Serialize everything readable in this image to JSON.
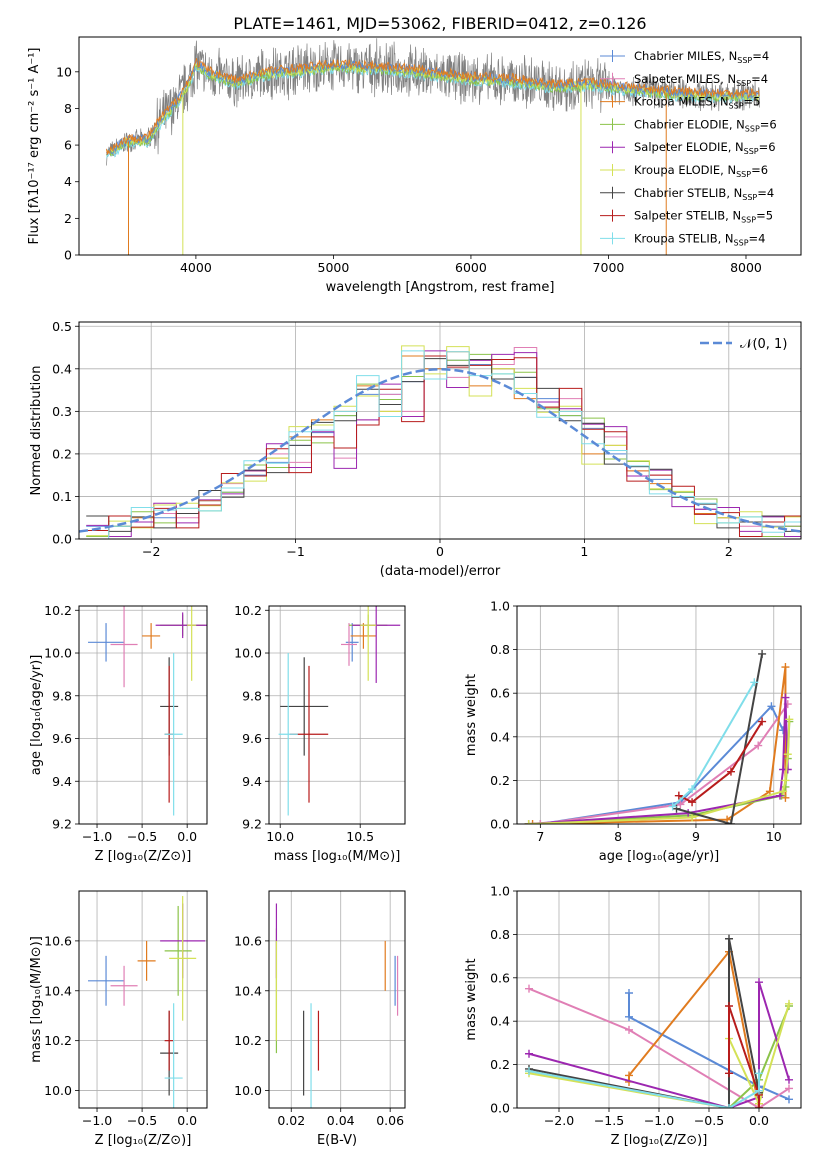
{
  "title": "PLATE=1461, MJD=53062, FIBERID=0412, z=0.126",
  "colors": {
    "chabrier_miles": "#5b8ad6",
    "salpeter_miles": "#e07fb5",
    "kroupa_miles": "#e07b1f",
    "chabrier_elodie": "#8bc34a",
    "salpeter_elodie": "#9c27b0",
    "kroupa_elodie": "#d4e157",
    "chabrier_stelib": "#444444",
    "salpeter_stelib": "#b71c1c",
    "kroupa_stelib": "#80deea",
    "data": "#808080",
    "gaussian": "#5b8ad6"
  },
  "legend_top": [
    {
      "pre": "Chabrier MILES, N",
      "sub": "SSP",
      "post": "=4",
      "color_key": "chabrier_miles"
    },
    {
      "pre": "Salpeter MILES, N",
      "sub": "SSP",
      "post": "=4",
      "color_key": "salpeter_miles"
    },
    {
      "pre": "Kroupa MILES, N",
      "sub": "SSP",
      "post": "=5",
      "color_key": "kroupa_miles"
    },
    {
      "pre": "Chabrier ELODIE, N",
      "sub": "SSP",
      "post": "=6",
      "color_key": "chabrier_elodie"
    },
    {
      "pre": "Salpeter ELODIE, N",
      "sub": "SSP",
      "post": "=6",
      "color_key": "salpeter_elodie"
    },
    {
      "pre": "Kroupa ELODIE, N",
      "sub": "SSP",
      "post": "=6",
      "color_key": "kroupa_elodie"
    },
    {
      "pre": "Chabrier STELIB, N",
      "sub": "SSP",
      "post": "=4",
      "color_key": "chabrier_stelib"
    },
    {
      "pre": "Salpeter STELIB, N",
      "sub": "SSP",
      "post": "=5",
      "color_key": "salpeter_stelib"
    },
    {
      "pre": "Kroupa STELIB, N",
      "sub": "SSP",
      "post": "=4",
      "color_key": "kroupa_stelib"
    }
  ],
  "chart_data": [
    {
      "id": "spectrum",
      "type": "line",
      "xlabel": "wavelength [Angstrom, rest frame]",
      "ylabel": "Flux [fλ10⁻¹⁷ erg cm⁻² s⁻¹ A⁻¹]",
      "xlim": [
        3150,
        8400
      ],
      "ylim": [
        0,
        11.9
      ],
      "xticks": [
        4000,
        5000,
        6000,
        7000,
        8000
      ],
      "yticks": [
        0,
        2,
        4,
        6,
        8,
        10
      ],
      "grid": false,
      "legend": "upper right",
      "continuum": {
        "x": [
          3350,
          3500,
          3650,
          3750,
          3850,
          3950,
          4000,
          4100,
          4300,
          4500,
          4800,
          5000,
          5300,
          5600,
          6000,
          6300,
          6600,
          6900,
          7200,
          7500,
          7800,
          8100
        ],
        "y": [
          5.5,
          6.2,
          6.3,
          7.4,
          8.2,
          9.4,
          10.4,
          9.9,
          9.4,
          9.9,
          10.1,
          10.3,
          10.2,
          10.0,
          9.6,
          9.5,
          9.2,
          9.3,
          9.0,
          8.8,
          8.7,
          8.7
        ]
      },
      "spikes": [
        {
          "x": 3510,
          "color_key": "kroupa_miles"
        },
        {
          "x": 3905,
          "color_key": "kroupa_elodie"
        },
        {
          "x": 6800,
          "color_key": "kroupa_elodie"
        },
        {
          "x": 7420,
          "color_key": "kroupa_miles"
        }
      ]
    },
    {
      "id": "residuals",
      "type": "histogram",
      "xlabel": "(data-model)/error",
      "ylabel": "Normed distribution",
      "xlim": [
        -2.5,
        2.5
      ],
      "ylim": [
        0,
        0.51
      ],
      "xticks": [
        -2,
        -1,
        0,
        1,
        2
      ],
      "yticks": [
        0.0,
        0.1,
        0.2,
        0.3,
        0.4,
        0.5
      ],
      "grid": true,
      "legend": "upper right",
      "gaussian_label": "𝒩(0, 1)",
      "bin_width": 0.1,
      "series": [
        {
          "color_key": "chabrier_miles",
          "values": [
            0.03,
            0.03,
            0.04,
            0.05,
            0.06,
            0.09,
            0.11,
            0.15,
            0.18,
            0.22,
            0.25,
            0.29,
            0.34,
            0.34,
            0.37,
            0.4,
            0.42,
            0.41,
            0.4,
            0.38,
            0.33,
            0.29,
            0.26,
            0.2,
            0.17,
            0.14,
            0.11,
            0.07,
            0.05,
            0.04,
            0.03,
            0.03
          ]
        },
        {
          "color_key": "salpeter_miles",
          "values": [
            0.02,
            0.03,
            0.04,
            0.06,
            0.05,
            0.08,
            0.13,
            0.16,
            0.2,
            0.18,
            0.24,
            0.19,
            0.28,
            0.34,
            0.3,
            0.43,
            0.38,
            0.42,
            0.41,
            0.45,
            0.31,
            0.33,
            0.27,
            0.24,
            0.16,
            0.15,
            0.1,
            0.07,
            0.05,
            0.03,
            0.04,
            0.03
          ]
        },
        {
          "color_key": "kroupa_miles",
          "values": [
            0.02,
            0.03,
            0.05,
            0.08,
            0.06,
            0.09,
            0.12,
            0.16,
            0.19,
            0.24,
            0.28,
            0.3,
            0.36,
            0.3,
            0.43,
            0.4,
            0.44,
            0.36,
            0.4,
            0.33,
            0.31,
            0.3,
            0.2,
            0.22,
            0.16,
            0.13,
            0.1,
            0.06,
            0.05,
            0.04,
            0.04,
            0.04
          ]
        }
      ]
    },
    {
      "id": "age_vs_Z",
      "type": "errorbar",
      "xlabel": "Z [log₁₀(Z/Z⊙)]",
      "ylabel": "age  [log₁₀(age/yr)]",
      "xlim": [
        -1.2,
        0.22
      ],
      "ylim": [
        9.2,
        10.22
      ],
      "xticks": [
        -1.0,
        -0.5,
        0.0
      ],
      "yticks": [
        9.2,
        9.4,
        9.6,
        9.8,
        10.0,
        10.2
      ],
      "grid": true,
      "points": [
        {
          "color_key": "chabrier_miles",
          "x": -0.9,
          "xerr": 0.2,
          "y": 10.05,
          "yerr": 0.09
        },
        {
          "color_key": "salpeter_miles",
          "x": -0.7,
          "xerr": 0.15,
          "y": 10.04,
          "yerr": 0.2
        },
        {
          "color_key": "kroupa_miles",
          "x": -0.4,
          "xerr": 0.1,
          "y": 10.08,
          "yerr": 0.06
        },
        {
          "color_key": "chabrier_elodie",
          "x": -0.05,
          "xerr": 0.25,
          "y": 10.13,
          "yerr": 0.05
        },
        {
          "color_key": "salpeter_elodie",
          "x": -0.05,
          "xerr": 0.3,
          "y": 10.13,
          "yerr": 0.06
        },
        {
          "color_key": "kroupa_elodie",
          "x": 0.05,
          "xerr": 0.05,
          "y": 10.13,
          "yerr": 0.26
        },
        {
          "color_key": "chabrier_stelib",
          "x": -0.2,
          "xerr": 0.1,
          "y": 9.75,
          "yerr": 0.23
        },
        {
          "color_key": "salpeter_stelib",
          "x": -0.2,
          "xerr": 0.05,
          "y": 9.62,
          "yerr": 0.32
        },
        {
          "color_key": "kroupa_stelib",
          "x": -0.15,
          "xerr": 0.1,
          "y": 9.62,
          "yerr": 0.38
        }
      ]
    },
    {
      "id": "age_vs_mass",
      "type": "errorbar",
      "xlabel": "mass [log₁₀(M/M⊙)]",
      "ylabel": "",
      "xlim": [
        9.93,
        10.78
      ],
      "ylim": [
        9.2,
        10.22
      ],
      "xticks": [
        10.0,
        10.5
      ],
      "yticks": [
        9.2,
        9.4,
        9.6,
        9.8,
        10.0,
        10.2
      ],
      "grid": true,
      "points": [
        {
          "color_key": "chabrier_miles",
          "x": 10.45,
          "xerr": 0.04,
          "y": 10.05,
          "yerr": 0.09
        },
        {
          "color_key": "salpeter_miles",
          "x": 10.43,
          "xerr": 0.05,
          "y": 10.04,
          "yerr": 0.1
        },
        {
          "color_key": "kroupa_miles",
          "x": 10.52,
          "xerr": 0.08,
          "y": 10.08,
          "yerr": 0.06
        },
        {
          "color_key": "chabrier_elodie",
          "x": 10.55,
          "xerr": 0.12,
          "y": 10.13,
          "yerr": 0.05
        },
        {
          "color_key": "salpeter_elodie",
          "x": 10.6,
          "xerr": 0.15,
          "y": 10.13,
          "yerr": 0.27
        },
        {
          "color_key": "kroupa_elodie",
          "x": 10.55,
          "xerr": 0.05,
          "y": 10.13,
          "yerr": 0.26
        },
        {
          "color_key": "chabrier_stelib",
          "x": 10.15,
          "xerr": 0.15,
          "y": 9.75,
          "yerr": 0.23
        },
        {
          "color_key": "salpeter_stelib",
          "x": 10.18,
          "xerr": 0.12,
          "y": 9.62,
          "yerr": 0.32
        },
        {
          "color_key": "kroupa_stelib",
          "x": 10.05,
          "xerr": 0.06,
          "y": 9.62,
          "yerr": 0.38
        }
      ]
    },
    {
      "id": "mass_weight_vs_age",
      "type": "line",
      "xlabel": "age  [log₁₀(age/yr)]",
      "ylabel": "mass weight",
      "xlim": [
        6.7,
        10.35
      ],
      "ylim": [
        0,
        1.0
      ],
      "xticks": [
        7,
        8,
        9,
        10
      ],
      "yticks": [
        0.0,
        0.2,
        0.4,
        0.6,
        0.8,
        1.0
      ],
      "grid": true,
      "series": [
        {
          "color_key": "chabrier_miles",
          "x": [
            7.0,
            8.8,
            9.97,
            10.12
          ],
          "y": [
            0.0,
            0.1,
            0.54,
            0.43
          ]
        },
        {
          "color_key": "salpeter_miles",
          "x": [
            7.0,
            8.8,
            9.8,
            10.18
          ],
          "y": [
            0.0,
            0.09,
            0.36,
            0.55
          ]
        },
        {
          "color_key": "kroupa_miles",
          "x": [
            6.9,
            9.4,
            9.95,
            10.15,
            10.15
          ],
          "y": [
            0.0,
            0.02,
            0.15,
            0.72,
            0.12
          ]
        },
        {
          "color_key": "chabrier_elodie",
          "x": [
            6.85,
            8.95,
            10.1,
            10.15,
            10.18,
            10.2
          ],
          "y": [
            0.0,
            0.04,
            0.13,
            0.17,
            0.3,
            0.47
          ]
        },
        {
          "color_key": "salpeter_elodie",
          "x": [
            6.85,
            8.9,
            10.08,
            10.12,
            10.15,
            10.18
          ],
          "y": [
            0.0,
            0.05,
            0.13,
            0.25,
            0.58,
            0.25
          ]
        },
        {
          "color_key": "kroupa_elodie",
          "x": [
            6.85,
            8.95,
            10.12,
            10.15,
            10.18,
            10.2
          ],
          "y": [
            0.0,
            0.03,
            0.15,
            0.2,
            0.32,
            0.48
          ]
        },
        {
          "color_key": "chabrier_stelib",
          "x": [
            8.75,
            9.45,
            9.85
          ],
          "y": [
            0.07,
            0.0,
            0.78
          ]
        },
        {
          "color_key": "salpeter_stelib",
          "x": [
            8.78,
            8.95,
            9.45,
            9.85
          ],
          "y": [
            0.13,
            0.1,
            0.24,
            0.47
          ]
        },
        {
          "color_key": "kroupa_stelib",
          "x": [
            8.7,
            8.95,
            9.75
          ],
          "y": [
            0.08,
            0.16,
            0.65
          ]
        }
      ]
    },
    {
      "id": "mass_vs_Z",
      "type": "errorbar",
      "xlabel": "Z [log₁₀(Z/Z⊙)]",
      "ylabel": "mass [log₁₀(M/M⊙)]",
      "xlim": [
        -1.2,
        0.22
      ],
      "ylim": [
        9.93,
        10.8
      ],
      "xticks": [
        -1.0,
        -0.5,
        0.0
      ],
      "yticks": [
        10.0,
        10.2,
        10.4,
        10.6
      ],
      "grid": true,
      "points": [
        {
          "color_key": "chabrier_miles",
          "x": -0.9,
          "xerr": 0.2,
          "y": 10.44,
          "yerr": 0.1
        },
        {
          "color_key": "salpeter_miles",
          "x": -0.7,
          "xerr": 0.15,
          "y": 10.42,
          "yerr": 0.08
        },
        {
          "color_key": "kroupa_miles",
          "x": -0.45,
          "xerr": 0.1,
          "y": 10.52,
          "yerr": 0.08
        },
        {
          "color_key": "chabrier_elodie",
          "x": -0.1,
          "xerr": 0.15,
          "y": 10.56,
          "yerr": 0.18
        },
        {
          "color_key": "salpeter_elodie",
          "x": -0.05,
          "xerr": 0.25,
          "y": 10.6,
          "yerr": 0.15
        },
        {
          "color_key": "kroupa_elodie",
          "x": -0.05,
          "xerr": 0.15,
          "y": 10.53,
          "yerr": 0.25
        },
        {
          "color_key": "chabrier_stelib",
          "x": -0.2,
          "xerr": 0.1,
          "y": 10.15,
          "yerr": 0.17
        },
        {
          "color_key": "salpeter_stelib",
          "x": -0.2,
          "xerr": 0.05,
          "y": 10.2,
          "yerr": 0.12
        },
        {
          "color_key": "kroupa_stelib",
          "x": -0.15,
          "xerr": 0.1,
          "y": 10.05,
          "yerr": 0.3
        }
      ]
    },
    {
      "id": "mass_vs_ebv",
      "type": "errorbar",
      "xlabel": "E(B-V)",
      "ylabel": "",
      "xlim": [
        0.011,
        0.066
      ],
      "ylim": [
        9.93,
        10.8
      ],
      "xticks": [
        0.02,
        0.04,
        0.06
      ],
      "yticks": [
        10.0,
        10.2,
        10.4,
        10.6
      ],
      "grid": true,
      "points": [
        {
          "color_key": "chabrier_elodie",
          "x": 0.014,
          "xerr": 0.0,
          "y": 10.4,
          "yerr": 0.25
        },
        {
          "color_key": "salpeter_elodie",
          "x": 0.014,
          "xerr": 0.0,
          "y": 10.6,
          "yerr": 0.15
        },
        {
          "color_key": "kroupa_elodie",
          "x": 0.014,
          "xerr": 0.0,
          "y": 10.4,
          "yerr": 0.2
        },
        {
          "color_key": "chabrier_stelib",
          "x": 0.025,
          "xerr": 0.0,
          "y": 10.15,
          "yerr": 0.17
        },
        {
          "color_key": "kroupa_stelib",
          "x": 0.028,
          "xerr": 0.0,
          "y": 10.05,
          "yerr": 0.3
        },
        {
          "color_key": "salpeter_stelib",
          "x": 0.031,
          "xerr": 0.0,
          "y": 10.2,
          "yerr": 0.12
        },
        {
          "color_key": "kroupa_miles",
          "x": 0.058,
          "xerr": 0.0,
          "y": 10.5,
          "yerr": 0.1
        },
        {
          "color_key": "chabrier_miles",
          "x": 0.062,
          "xerr": 0.0,
          "y": 10.44,
          "yerr": 0.1
        },
        {
          "color_key": "salpeter_miles",
          "x": 0.063,
          "xerr": 0.0,
          "y": 10.42,
          "yerr": 0.12
        }
      ]
    },
    {
      "id": "mass_weight_vs_Z",
      "type": "line",
      "xlabel": "Z [log₁₀(Z/Z⊙)]",
      "ylabel": "mass weight",
      "xlim": [
        -2.42,
        0.42
      ],
      "ylim": [
        0,
        1.0
      ],
      "xticks": [
        -2.0,
        -1.5,
        -1.0,
        -0.5,
        0.0
      ],
      "yticks": [
        0.0,
        0.2,
        0.4,
        0.6,
        0.8,
        1.0
      ],
      "grid": true,
      "series": [
        {
          "color_key": "chabrier_miles",
          "x": [
            -1.3,
            -1.3,
            0.0,
            0.3
          ],
          "y": [
            0.53,
            0.42,
            0.1,
            0.04
          ]
        },
        {
          "color_key": "salpeter_miles",
          "x": [
            -2.3,
            -1.3,
            0.0,
            0.3
          ],
          "y": [
            0.55,
            0.36,
            0.0,
            0.09
          ]
        },
        {
          "color_key": "kroupa_miles",
          "x": [
            -1.3,
            -1.3,
            -0.3,
            0.0,
            0.0
          ],
          "y": [
            0.12,
            0.15,
            0.72,
            0.0,
            0.02
          ]
        },
        {
          "color_key": "chabrier_elodie",
          "x": [
            -2.3,
            -0.3,
            0.0,
            0.3
          ],
          "y": [
            0.17,
            0.0,
            0.13,
            0.47
          ]
        },
        {
          "color_key": "salpeter_elodie",
          "x": [
            -2.3,
            -0.3,
            0.0,
            0.0,
            0.3
          ],
          "y": [
            0.25,
            0.0,
            0.05,
            0.58,
            0.13
          ]
        },
        {
          "color_key": "kroupa_elodie",
          "x": [
            -2.3,
            -0.3,
            -0.3,
            0.0,
            0.3
          ],
          "y": [
            0.16,
            0.0,
            0.32,
            0.02,
            0.48
          ]
        },
        {
          "color_key": "chabrier_stelib",
          "x": [
            -2.3,
            -0.3,
            -0.3,
            0.0
          ],
          "y": [
            0.18,
            0.0,
            0.78,
            0.07
          ]
        },
        {
          "color_key": "salpeter_stelib",
          "x": [
            -0.3,
            -0.3,
            0.0,
            0.0
          ],
          "y": [
            0.16,
            0.47,
            0.06,
            0.0
          ]
        },
        {
          "color_key": "kroupa_stelib",
          "x": [
            -2.3,
            -0.3,
            0.0,
            0.0
          ],
          "y": [
            0.17,
            0.0,
            0.08,
            0.16
          ]
        }
      ]
    }
  ]
}
